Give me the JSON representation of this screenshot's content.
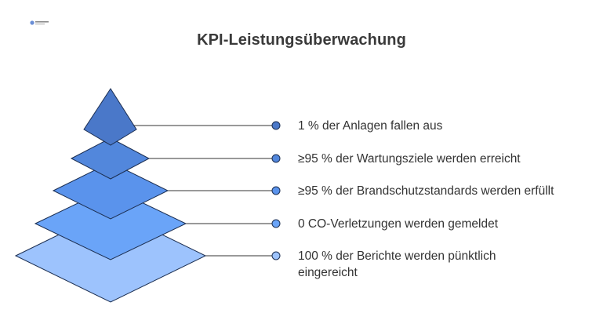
{
  "title": "KPI-Leistungsüberwachung",
  "colors": {
    "level1": "#4a78c9",
    "level2": "#5287dc",
    "level3": "#5a93ec",
    "level4": "#6aa4f8",
    "level5": "#9dc3fd",
    "stroke": "#1c2f52",
    "connector": "#333333"
  },
  "levels": [
    {
      "label": "1 % der Anlagen fallen aus",
      "dot_color": "#4a78c9"
    },
    {
      "label": "≥95 % der Wartungsziele werden erreicht",
      "dot_color": "#5287dc"
    },
    {
      "label": "≥95 % der Brandschutzstandards werden erfüllt",
      "dot_color": "#5a93ec"
    },
    {
      "label": "0 CO-Verletzungen werden gemeldet",
      "dot_color": "#6aa4f8"
    },
    {
      "label": "100 % der Berichte werden pünktlich eingereicht",
      "dot_color": "#9dc3fd"
    }
  ]
}
